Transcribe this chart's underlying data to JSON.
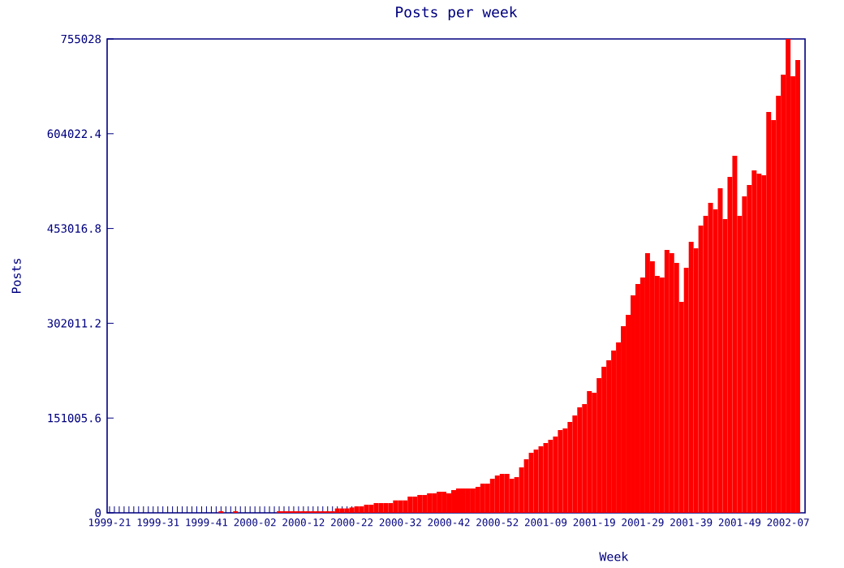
{
  "chart_data": {
    "type": "bar",
    "title": "Posts per week",
    "xlabel": "Week",
    "ylabel": "Posts",
    "color": "#ff0000",
    "categories": [
      "1999-21",
      null,
      null,
      null,
      null,
      null,
      null,
      null,
      null,
      null,
      "1999-31",
      null,
      null,
      null,
      null,
      null,
      null,
      null,
      null,
      null,
      "1999-41",
      null,
      null,
      null,
      null,
      null,
      null,
      null,
      null,
      null,
      "2000-02",
      null,
      null,
      null,
      null,
      null,
      null,
      null,
      null,
      null,
      "2000-12",
      null,
      null,
      null,
      null,
      null,
      null,
      null,
      null,
      null,
      "2000-22",
      null,
      null,
      null,
      null,
      null,
      null,
      null,
      null,
      null,
      "2000-32",
      null,
      null,
      null,
      null,
      null,
      null,
      null,
      null,
      null,
      "2000-42",
      null,
      null,
      null,
      null,
      null,
      null,
      null,
      null,
      null,
      "2000-52",
      null,
      null,
      null,
      null,
      null,
      null,
      null,
      null,
      null,
      "2001-09",
      null,
      null,
      null,
      null,
      null,
      null,
      null,
      null,
      null,
      "2001-19",
      null,
      null,
      null,
      null,
      null,
      null,
      null,
      null,
      null,
      "2001-29",
      null,
      null,
      null,
      null,
      null,
      null,
      null,
      null,
      null,
      "2001-39",
      null,
      null,
      null,
      null,
      null,
      null,
      null,
      null,
      null,
      "2001-49",
      null,
      null,
      null,
      null,
      null,
      null,
      null,
      null,
      null,
      "2002-07",
      null,
      null
    ],
    "values": [
      0,
      0,
      0,
      0,
      0,
      0,
      0,
      0,
      0,
      0,
      0,
      0,
      0,
      0,
      0,
      0,
      0,
      0,
      0,
      0,
      0,
      0,
      0,
      2500,
      0,
      0,
      2500,
      0,
      0,
      0,
      0,
      0,
      0,
      0,
      0,
      2500,
      2500,
      2500,
      2500,
      2500,
      2500,
      2500,
      2500,
      2500,
      2500,
      2500,
      2500,
      7000,
      7000,
      7000,
      8500,
      10300,
      10300,
      12900,
      12900,
      15500,
      15500,
      15500,
      15500,
      19800,
      19800,
      19800,
      25900,
      25900,
      28400,
      28400,
      31000,
      31000,
      33600,
      33600,
      31000,
      36200,
      38800,
      38800,
      38800,
      38800,
      41400,
      46500,
      46500,
      54300,
      59500,
      62100,
      62100,
      54300,
      56900,
      72400,
      85300,
      95700,
      100800,
      106000,
      111200,
      116400,
      121500,
      131900,
      134500,
      144800,
      155100,
      168100,
      173200,
      193900,
      191300,
      214600,
      232700,
      243100,
      258600,
      271500,
      297400,
      315500,
      346500,
      364600,
      374900,
      413700,
      400800,
      377500,
      374900,
      418900,
      413700,
      398200,
      336100,
      390400,
      431800,
      421500,
      457700,
      473200,
      493900,
      483500,
      517200,
      468000,
      535300,
      568900,
      473200,
      504200,
      522300,
      545600,
      540400,
      537800,
      638700,
      625800,
      664500,
      698100,
      755028,
      695600,
      721400
    ],
    "ylim": [
      0,
      755028
    ],
    "yticks": [
      0,
      151005.6,
      302011.2,
      453016.8,
      604022.4,
      755028
    ]
  }
}
